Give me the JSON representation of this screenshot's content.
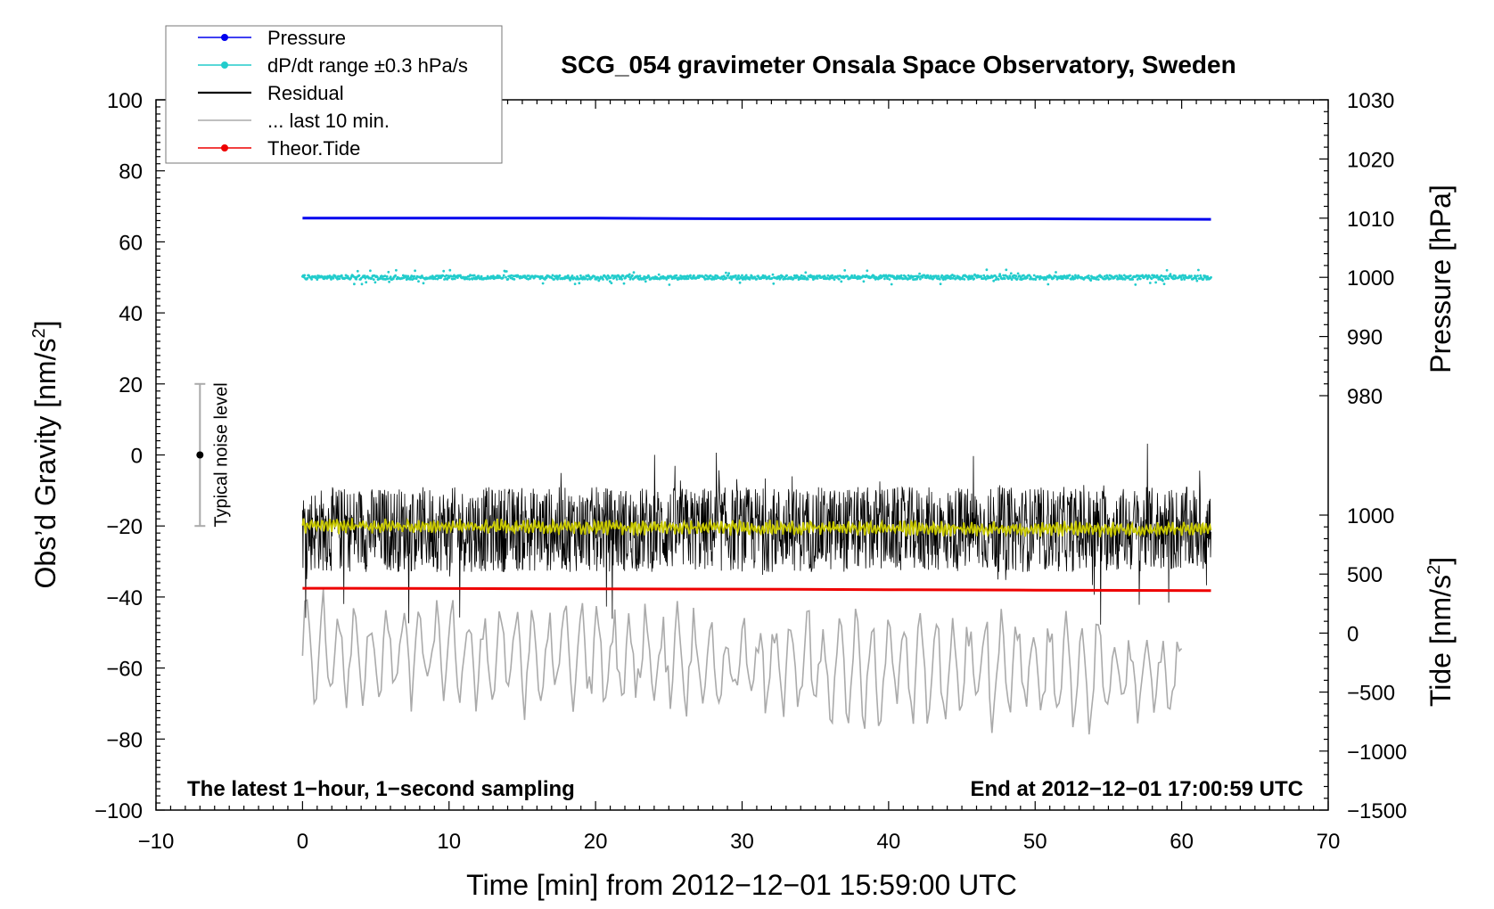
{
  "chart_data": {
    "type": "line",
    "title": "SCG_054 gravimeter Onsala Space Observatory, Sweden",
    "xlabel": "Time [min] from 2012−12−01 15:59:00 UTC",
    "ylabel_left": "Obs’d Gravity [nm/s",
    "ylabel_left_sup": "2",
    "ylabel_left_close": "]",
    "ylabel_right_pressure": "Pressure [hPa]",
    "ylabel_right_tide": "Tide [nm/s",
    "ylabel_right_tide_sup": "2",
    "ylabel_right_tide_close": "]",
    "xlim": [
      -10,
      70
    ],
    "ylim_left": [
      -100,
      100
    ],
    "pressure_axis": {
      "range": [
        980,
        1030
      ],
      "ticks": [
        "980",
        "990",
        "1000",
        "1010",
        "1020",
        "1030"
      ]
    },
    "tide_axis": {
      "range": [
        -1500,
        1000
      ],
      "ticks": [
        "−1500",
        "−1000",
        "−500",
        "0",
        "500",
        "1000"
      ]
    },
    "x_ticks": [
      "−10",
      "0",
      "10",
      "20",
      "30",
      "40",
      "50",
      "60",
      "70"
    ],
    "y_ticks_left": [
      "−100",
      "−80",
      "−60",
      "−40",
      "−20",
      "0",
      "20",
      "40",
      "60",
      "80",
      "100"
    ],
    "legend": [
      {
        "label": "Pressure",
        "color": "#0000ee",
        "marker": true
      },
      {
        "label": "dP/dt range ±0.3 hPa/s",
        "color": "#22cccc",
        "marker": true
      },
      {
        "label": "Residual",
        "color": "#000000",
        "marker": false
      },
      {
        "label": "... last 10 min.",
        "color": "#aaaaaa",
        "marker": false
      },
      {
        "label": "Theor.Tide",
        "color": "#ee0000",
        "marker": true
      }
    ],
    "series": [
      {
        "name": "Pressure",
        "axis": "pressure_hPa",
        "x": [
          0,
          10,
          20,
          30,
          40,
          50,
          62
        ],
        "values": [
          1010.0,
          1010.0,
          1010.0,
          1009.9,
          1009.9,
          1009.9,
          1009.8
        ]
      },
      {
        "name": "dP/dt range ±0.3 hPa/s",
        "axis": "left",
        "x": [
          0,
          62
        ],
        "values": [
          50,
          50
        ],
        "spread": 1.2
      },
      {
        "name": "Residual",
        "axis": "left",
        "x": [
          0,
          62
        ],
        "values": [
          -21,
          -21
        ],
        "spread": 12
      },
      {
        "name": "Residual smoothed",
        "axis": "left",
        "x": [
          0,
          62
        ],
        "values": [
          -20,
          -21
        ],
        "color": "#c8c800"
      },
      {
        "name": "Theor.Tide",
        "axis": "tide_nm_s2",
        "x": [
          0,
          10,
          20,
          30,
          40,
          50,
          62
        ],
        "values": [
          380,
          378,
          375,
          372,
          368,
          364,
          360
        ]
      },
      {
        "name": "... last 10 min.",
        "axis": "left",
        "x": [
          0,
          60
        ],
        "values": [
          -55,
          -62
        ],
        "spread": 15
      }
    ],
    "noise_level": {
      "x": -7,
      "center": 0,
      "range": [
        -20,
        20
      ],
      "label": "Typical noise level"
    },
    "annotations": {
      "bottom_left": "The latest 1−hour, 1−second sampling",
      "bottom_right": "End at 2012−12−01 17:00:59 UTC"
    }
  }
}
